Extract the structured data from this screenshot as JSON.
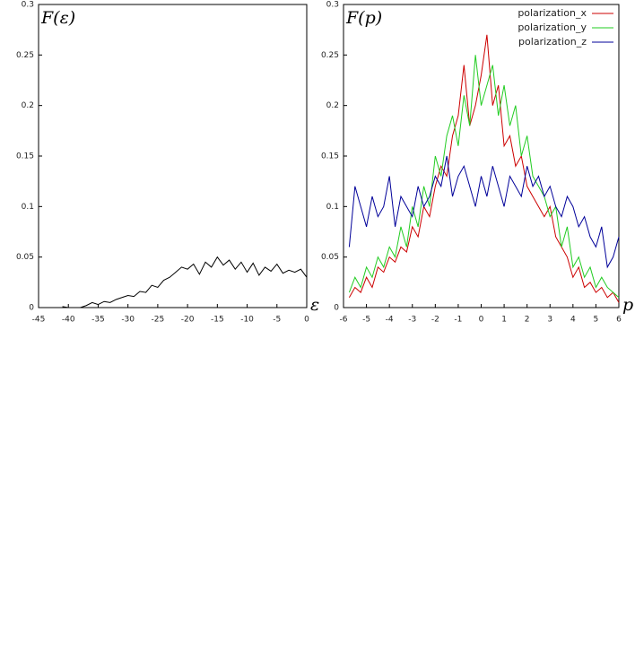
{
  "chart_data": [
    {
      "type": "line",
      "x_label": "ε",
      "y_label": "F(ε)",
      "x": [
        -41,
        -40,
        -39,
        -38,
        -37,
        -36,
        -35,
        -34,
        -33,
        -32,
        -31,
        -30,
        -29,
        -28,
        -27,
        -26,
        -25,
        -24,
        -23,
        -22,
        -21,
        -20,
        -19,
        -18,
        -17,
        -16,
        -15,
        -14,
        -13,
        -12,
        -11,
        -10,
        -9,
        -8,
        -7,
        -6,
        -5,
        -4,
        -3,
        -2,
        -1,
        0
      ],
      "values": [
        0.001,
        0,
        0,
        0,
        0.002,
        0.005,
        0.003,
        0.006,
        0.005,
        0.008,
        0.01,
        0.012,
        0.011,
        0.016,
        0.015,
        0.022,
        0.02,
        0.027,
        0.03,
        0.035,
        0.04,
        0.038,
        0.043,
        0.033,
        0.045,
        0.04,
        0.05,
        0.042,
        0.047,
        0.038,
        0.045,
        0.035,
        0.044,
        0.032,
        0.04,
        0.036,
        0.043,
        0.034,
        0.037,
        0.035,
        0.038,
        0.03
      ],
      "color": "#000000",
      "xlim": [
        -45,
        0
      ],
      "xticks": [
        -45,
        -40,
        -35,
        -30,
        -25,
        -20,
        -15,
        -10,
        -5,
        0
      ],
      "ylim": [
        0,
        0.3
      ],
      "yticks": [
        0,
        0.05,
        0.1,
        0.15,
        0.2,
        0.25,
        0.3
      ]
    },
    {
      "type": "line",
      "x_label": "p",
      "y_label": "F(p)",
      "legend": "top-right",
      "x": [
        -5.75,
        -5.5,
        -5.25,
        -5,
        -4.75,
        -4.5,
        -4.25,
        -4,
        -3.75,
        -3.5,
        -3.25,
        -3,
        -2.75,
        -2.5,
        -2.25,
        -2,
        -1.75,
        -1.5,
        -1.25,
        -1,
        -0.75,
        -0.5,
        -0.25,
        0,
        0.25,
        0.5,
        0.75,
        1,
        1.25,
        1.5,
        1.75,
        2,
        2.25,
        2.5,
        2.75,
        3,
        3.25,
        3.5,
        3.75,
        4,
        4.25,
        4.5,
        4.75,
        5,
        5.25,
        5.5,
        5.75,
        6
      ],
      "series": [
        {
          "name": "polarization_x",
          "color": "#cc0000",
          "values": [
            0.01,
            0.02,
            0.015,
            0.03,
            0.02,
            0.04,
            0.035,
            0.05,
            0.045,
            0.06,
            0.055,
            0.08,
            0.07,
            0.1,
            0.09,
            0.12,
            0.14,
            0.13,
            0.17,
            0.19,
            0.24,
            0.18,
            0.2,
            0.23,
            0.27,
            0.2,
            0.22,
            0.16,
            0.17,
            0.14,
            0.15,
            0.12,
            0.11,
            0.1,
            0.09,
            0.1,
            0.07,
            0.06,
            0.05,
            0.03,
            0.04,
            0.02,
            0.025,
            0.015,
            0.02,
            0.01,
            0.015,
            0.005
          ]
        },
        {
          "name": "polarization_y",
          "color": "#22cc22",
          "values": [
            0.015,
            0.03,
            0.02,
            0.04,
            0.03,
            0.05,
            0.04,
            0.06,
            0.05,
            0.08,
            0.06,
            0.1,
            0.08,
            0.12,
            0.1,
            0.15,
            0.13,
            0.17,
            0.19,
            0.16,
            0.21,
            0.18,
            0.25,
            0.2,
            0.22,
            0.24,
            0.19,
            0.22,
            0.18,
            0.2,
            0.15,
            0.17,
            0.13,
            0.12,
            0.11,
            0.09,
            0.1,
            0.06,
            0.08,
            0.04,
            0.05,
            0.03,
            0.04,
            0.02,
            0.03,
            0.02,
            0.015,
            0.01
          ]
        },
        {
          "name": "polarization_z",
          "color": "#000099",
          "values": [
            0.06,
            0.12,
            0.1,
            0.08,
            0.11,
            0.09,
            0.1,
            0.13,
            0.08,
            0.11,
            0.1,
            0.09,
            0.12,
            0.1,
            0.11,
            0.13,
            0.12,
            0.15,
            0.11,
            0.13,
            0.14,
            0.12,
            0.1,
            0.13,
            0.11,
            0.14,
            0.12,
            0.1,
            0.13,
            0.12,
            0.11,
            0.14,
            0.12,
            0.13,
            0.11,
            0.12,
            0.1,
            0.09,
            0.11,
            0.1,
            0.08,
            0.09,
            0.07,
            0.06,
            0.08,
            0.04,
            0.05,
            0.07
          ]
        }
      ],
      "xlim": [
        -6,
        6
      ],
      "xticks": [
        -6,
        -5,
        -4,
        -3,
        -2,
        -1,
        0,
        1,
        2,
        3,
        4,
        5,
        6
      ],
      "ylim": [
        0,
        0.3
      ],
      "yticks": [
        0,
        0.05,
        0.1,
        0.15,
        0.2,
        0.25,
        0.3
      ]
    }
  ]
}
